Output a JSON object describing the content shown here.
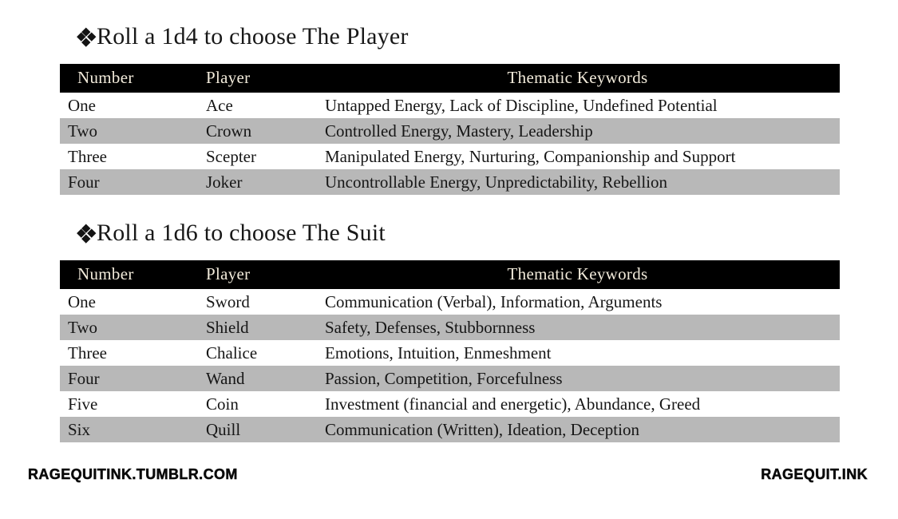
{
  "sections": [
    {
      "heading": "Roll a 1d4 to choose The Player",
      "table": {
        "headers": {
          "number": "Number",
          "player": "Player",
          "keywords": "Thematic Keywords"
        },
        "rows": [
          {
            "number": "One",
            "player": "Ace",
            "keywords": "Untapped Energy, Lack of Discipline, Undefined Potential"
          },
          {
            "number": "Two",
            "player": "Crown",
            "keywords": "Controlled Energy, Mastery, Leadership"
          },
          {
            "number": "Three",
            "player": "Scepter",
            "keywords": "Manipulated Energy, Nurturing, Companionship and Support"
          },
          {
            "number": "Four",
            "player": "Joker",
            "keywords": "Uncontrollable Energy, Unpredictability, Rebellion"
          }
        ]
      }
    },
    {
      "heading": "Roll a 1d6 to choose The Suit",
      "table": {
        "headers": {
          "number": "Number",
          "player": "Player",
          "keywords": "Thematic Keywords"
        },
        "rows": [
          {
            "number": "One",
            "player": "Sword",
            "keywords": "Communication (Verbal), Information, Arguments"
          },
          {
            "number": "Two",
            "player": "Shield",
            "keywords": "Safety, Defenses, Stubbornness"
          },
          {
            "number": "Three",
            "player": "Chalice",
            "keywords": "Emotions, Intuition, Enmeshment"
          },
          {
            "number": "Four",
            "player": "Wand",
            "keywords": "Passion, Competition, Forcefulness"
          },
          {
            "number": "Five",
            "player": "Coin",
            "keywords": "Investment (financial and energetic), Abundance, Greed"
          },
          {
            "number": "Six",
            "player": "Quill",
            "keywords": "Communication (Written), Ideation, Deception"
          }
        ]
      }
    }
  ],
  "footer": {
    "left": "RAGEQUITINK.TUMBLR.COM",
    "right": "RAGEQUIT.INK"
  },
  "icons": {
    "section_bullet": "four-diamonds-icon"
  },
  "colors": {
    "table_header_bg": "#000000",
    "table_header_text": "#f2ebdb",
    "row_stripe": "#b8b8b8",
    "body_text": "#1a1a1a"
  }
}
